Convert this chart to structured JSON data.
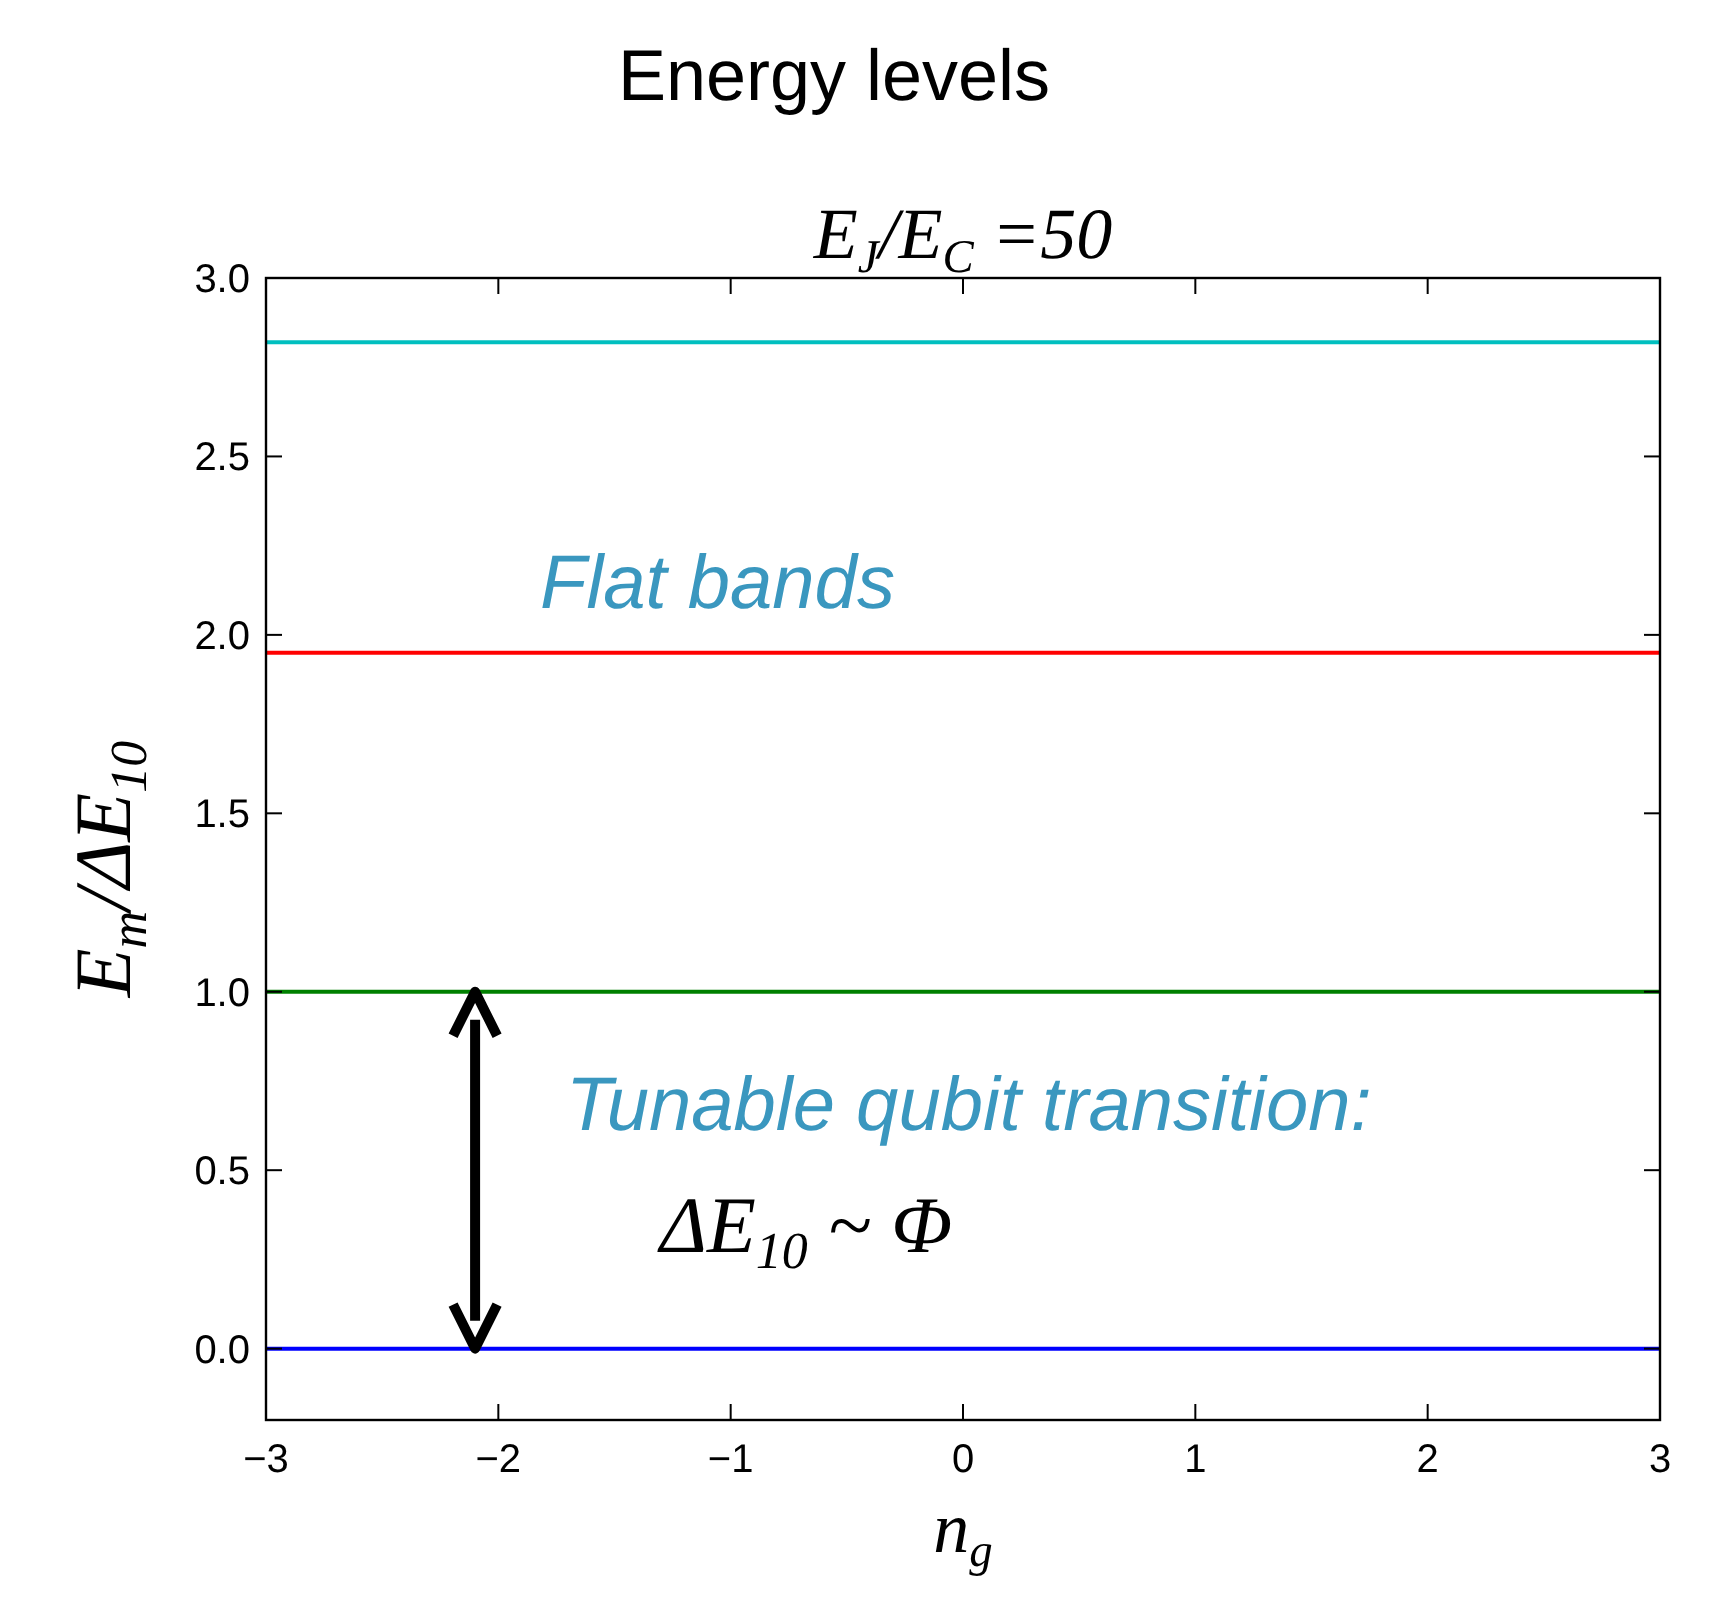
{
  "chart_data": {
    "type": "line",
    "title": "Energy levels",
    "subtitle": "E$_{J}$/E$_{C}$ =50",
    "xlabel": "n$_{g}$",
    "ylabel": "E$_{m}$/ΔE$_{10}$",
    "x": [
      -3,
      3
    ],
    "series": [
      {
        "color": "#00bfbf",
        "values": [
          2.82,
          2.82
        ]
      },
      {
        "color": "#ff0000",
        "values": [
          1.95,
          1.95
        ]
      },
      {
        "color": "#008000",
        "values": [
          1.0,
          1.0
        ]
      },
      {
        "color": "#0000ff",
        "values": [
          0.0,
          0.0
        ]
      }
    ],
    "xlim": [
      -3,
      3
    ],
    "ylim": [
      -0.2,
      3.0
    ],
    "xticks": [
      {
        "value": -3,
        "label": "−3"
      },
      {
        "value": -2,
        "label": "−2"
      },
      {
        "value": -1,
        "label": "−1"
      },
      0,
      1,
      2,
      3
    ],
    "yticks": [
      {
        "value": 0,
        "label": "0.0"
      },
      0.5,
      {
        "value": 1,
        "label": "1.0"
      },
      1.5,
      {
        "value": 2,
        "label": "2.0"
      },
      2.5,
      {
        "value": 3,
        "label": "3.0"
      }
    ],
    "grid": false,
    "marker": "none",
    "line_style": "solid",
    "annotations": [
      "Flat bands",
      "Tunable qubit transition:",
      "ΔE$_{10}$ ~ Φ"
    ]
  }
}
